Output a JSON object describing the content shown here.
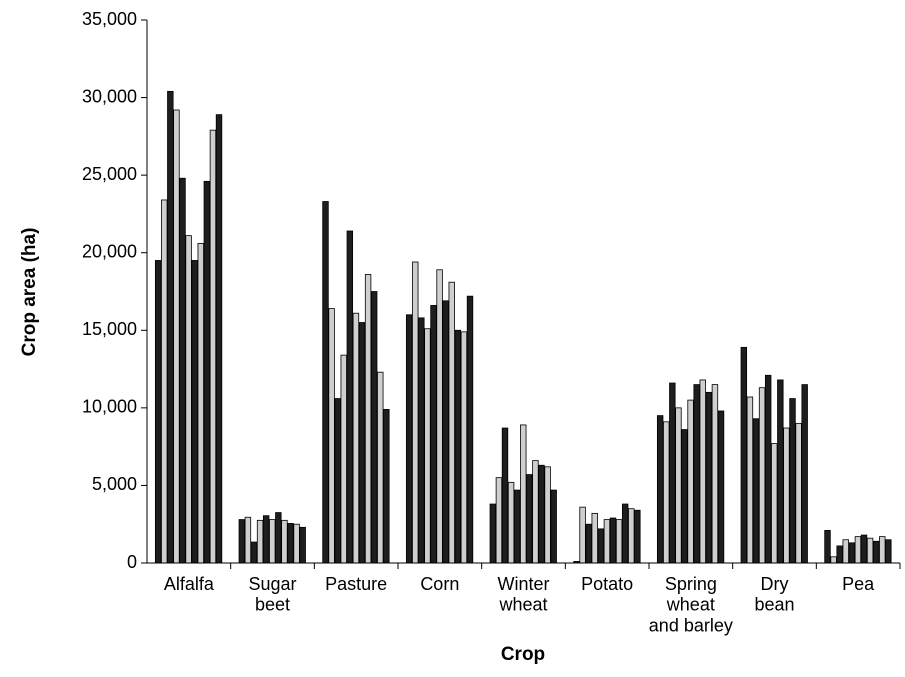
{
  "chart_data": {
    "type": "bar",
    "x_label": "Crop",
    "y_label": "Crop area (ha)",
    "categories": [
      "Alfalfa",
      "Sugar\nbeet",
      "Pasture",
      "Corn",
      "Winter\nwheat",
      "Potato",
      "Spring\nwheat\nand barley",
      "Dry\nbean",
      "Pea"
    ],
    "series": [
      {
        "color": "#1e1e1e",
        "values": [
          19500,
          2800,
          23300,
          16000,
          3800,
          100,
          9500,
          13900,
          2100
        ]
      },
      {
        "color": "#cfcfcf",
        "values": [
          23400,
          2950,
          16400,
          19400,
          5500,
          3600,
          9100,
          10700,
          400
        ]
      },
      {
        "color": "#1e1e1e",
        "values": [
          30400,
          1350,
          10600,
          15800,
          8700,
          2500,
          11600,
          9300,
          1100
        ]
      },
      {
        "color": "#cfcfcf",
        "values": [
          29200,
          2750,
          13400,
          15100,
          5200,
          3200,
          10000,
          11300,
          1500
        ]
      },
      {
        "color": "#1e1e1e",
        "values": [
          24800,
          3050,
          21400,
          16600,
          4700,
          2200,
          8600,
          12100,
          1300
        ]
      },
      {
        "color": "#cfcfcf",
        "values": [
          21100,
          2800,
          16100,
          18900,
          8900,
          2800,
          10500,
          7700,
          1700
        ]
      },
      {
        "color": "#1e1e1e",
        "values": [
          19500,
          3250,
          15500,
          16900,
          5700,
          2900,
          11500,
          11800,
          1800
        ]
      },
      {
        "color": "#cfcfcf",
        "values": [
          20600,
          2750,
          18600,
          18100,
          6600,
          2800,
          11800,
          8700,
          1600
        ]
      },
      {
        "color": "#1e1e1e",
        "values": [
          24600,
          2550,
          17500,
          15000,
          6300,
          3800,
          11000,
          10600,
          1400
        ]
      },
      {
        "color": "#cfcfcf",
        "values": [
          27900,
          2500,
          12300,
          14900,
          6200,
          3500,
          11500,
          9000,
          1700
        ]
      },
      {
        "color": "#1e1e1e",
        "values": [
          28900,
          2300,
          9900,
          17200,
          4700,
          3400,
          9800,
          11500,
          1500
        ]
      }
    ],
    "ylim": [
      0,
      35000
    ],
    "yticks": [
      0,
      {
        "value": 5000,
        "label": "5,000"
      },
      {
        "value": 10000,
        "label": "10,000"
      },
      {
        "value": 15000,
        "label": "15,000"
      },
      {
        "value": 20000,
        "label": "20,000"
      },
      {
        "value": 25000,
        "label": "25,000"
      },
      {
        "value": 30000,
        "label": "30,000"
      },
      {
        "value": 35000,
        "label": "35,000"
      }
    ],
    "grid": false
  }
}
